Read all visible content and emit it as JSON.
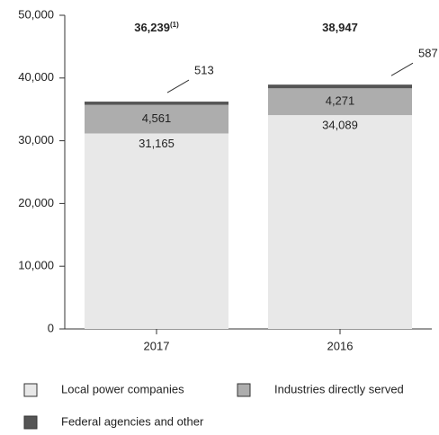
{
  "chart_data": {
    "type": "stacked_bar",
    "categories": [
      "2017",
      "2016"
    ],
    "series": [
      {
        "name": "Local power companies",
        "color": "#e8e8e8",
        "values": [
          31165,
          34089
        ],
        "value_labels": [
          "31,165",
          "34,089"
        ]
      },
      {
        "name": "Industries directly served",
        "color": "#adadad",
        "values": [
          4561,
          4271
        ],
        "value_labels": [
          "4,561",
          "4,271"
        ]
      },
      {
        "name": "Federal agencies and other",
        "color": "#555555",
        "values": [
          513,
          587
        ],
        "value_labels": [
          "513",
          "587"
        ]
      }
    ],
    "totals": [
      36239,
      38947
    ],
    "total_labels": [
      "36,239",
      "38,947"
    ],
    "total_notes": [
      "(1)",
      null
    ],
    "ylim": [
      0,
      50000
    ],
    "yticks": [
      {
        "value": 0,
        "label": "0"
      },
      {
        "value": 10000,
        "label": "10,000"
      },
      {
        "value": 20000,
        "label": "20,000"
      },
      {
        "value": 30000,
        "label": "30,000"
      },
      {
        "value": 40000,
        "label": "40,000"
      },
      {
        "value": 50000,
        "label": "50,000"
      }
    ],
    "grid": false
  }
}
